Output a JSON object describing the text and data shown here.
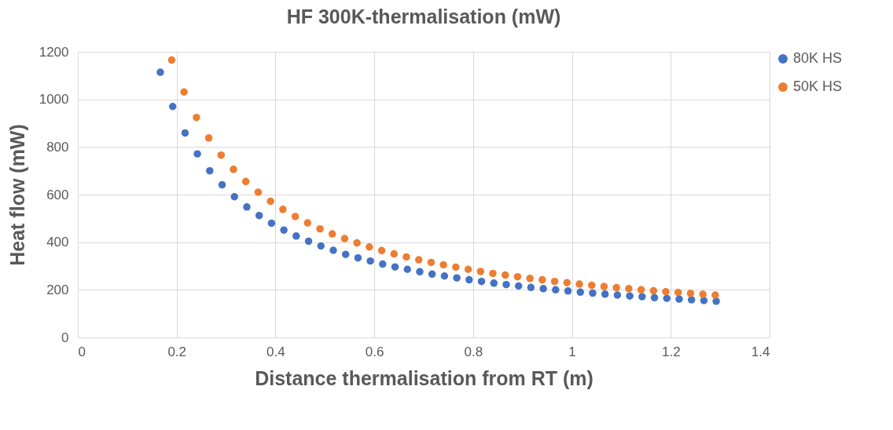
{
  "chart_data": {
    "type": "scatter",
    "title": "HF 300K-thermalisation (mW)",
    "xlabel": "Distance thermalisation from RT (m)",
    "ylabel": "Heat flow (mW)",
    "xlim": [
      0,
      1.4
    ],
    "xticks": [
      0,
      0.2,
      0.4,
      0.6,
      0.8,
      1,
      1.2,
      1.4
    ],
    "ylim": [
      0,
      1200
    ],
    "yticks": [
      0,
      200,
      400,
      600,
      800,
      1000,
      1200
    ],
    "grid": true,
    "legend": "right",
    "marker": "circle",
    "series": [
      {
        "name": "80K HS",
        "color": "#4472c4",
        "x": [
          0.167,
          0.192,
          0.217,
          0.242,
          0.267,
          0.292,
          0.317,
          0.342,
          0.367,
          0.392,
          0.417,
          0.442,
          0.467,
          0.492,
          0.517,
          0.542,
          0.567,
          0.592,
          0.617,
          0.642,
          0.667,
          0.692,
          0.717,
          0.742,
          0.767,
          0.792,
          0.817,
          0.842,
          0.867,
          0.892,
          0.917,
          0.942,
          0.967,
          0.992,
          1.017,
          1.042,
          1.067,
          1.092,
          1.117,
          1.142,
          1.167,
          1.192,
          1.217,
          1.242,
          1.267,
          1.292
        ],
        "values": [
          1114,
          970,
          859,
          771,
          700,
          641,
          591,
          548,
          512,
          480,
          451,
          426,
          404,
          384,
          366,
          349,
          334,
          321,
          308,
          296,
          286,
          276,
          266,
          258,
          250,
          242,
          235,
          228,
          222,
          216,
          210,
          205,
          200,
          195,
          190,
          186,
          182,
          178,
          174,
          171,
          167,
          164,
          161,
          158,
          155,
          152
        ]
      },
      {
        "name": "50K HS",
        "color": "#ed7d31",
        "x": [
          0.19,
          0.215,
          0.24,
          0.265,
          0.29,
          0.315,
          0.34,
          0.365,
          0.39,
          0.415,
          0.44,
          0.465,
          0.49,
          0.515,
          0.54,
          0.565,
          0.59,
          0.615,
          0.64,
          0.665,
          0.69,
          0.715,
          0.74,
          0.765,
          0.79,
          0.815,
          0.84,
          0.865,
          0.89,
          0.915,
          0.94,
          0.965,
          0.99,
          1.015,
          1.04,
          1.065,
          1.09,
          1.115,
          1.14,
          1.165,
          1.19,
          1.215,
          1.24,
          1.265,
          1.29
        ],
        "values": [
          1165,
          1031,
          924,
          838,
          766,
          706,
          655,
          610,
          572,
          538,
          508,
          481,
          456,
          435,
          415,
          397,
          380,
          365,
          351,
          338,
          326,
          315,
          305,
          295,
          286,
          277,
          269,
          262,
          255,
          248,
          242,
          235,
          230,
          224,
          219,
          214,
          209,
          205,
          200,
          196,
          192,
          189,
          185,
          181,
          178
        ]
      }
    ]
  }
}
